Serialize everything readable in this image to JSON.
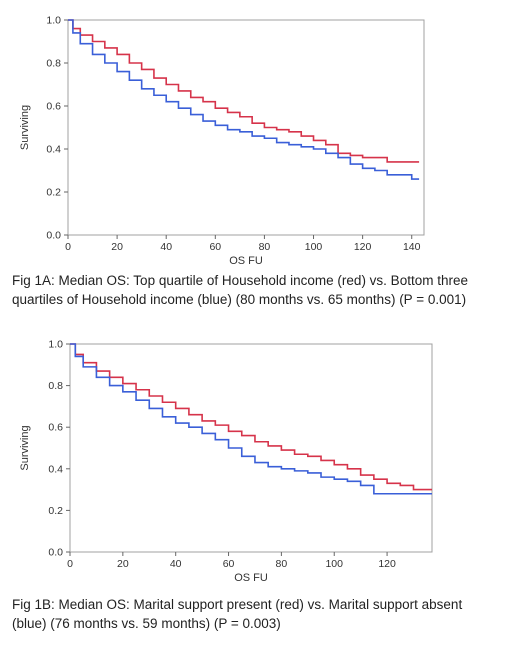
{
  "chart_data": [
    {
      "type": "line",
      "xlabel": "OS FU",
      "ylabel": "Surviving",
      "xlim": [
        0,
        145
      ],
      "ylim": [
        0,
        1.0
      ],
      "xticks": [
        "0",
        "20",
        "40",
        "60",
        "80",
        "100",
        "120",
        "140"
      ],
      "yticks": [
        "0.0",
        "0.2",
        "0.4",
        "0.6",
        "0.8",
        "1.0"
      ],
      "grid": false,
      "series": [
        {
          "color": "#d6334a",
          "x": [
            0,
            2,
            5,
            10,
            15,
            20,
            25,
            30,
            35,
            40,
            45,
            50,
            55,
            60,
            65,
            70,
            75,
            80,
            85,
            90,
            95,
            100,
            105,
            110,
            115,
            120,
            125,
            130,
            135,
            140,
            143
          ],
          "y": [
            1.0,
            0.96,
            0.93,
            0.9,
            0.87,
            0.84,
            0.8,
            0.77,
            0.73,
            0.7,
            0.67,
            0.64,
            0.62,
            0.59,
            0.57,
            0.55,
            0.52,
            0.5,
            0.49,
            0.48,
            0.46,
            0.44,
            0.42,
            0.38,
            0.37,
            0.36,
            0.36,
            0.34,
            0.34,
            0.34,
            0.34
          ]
        },
        {
          "color": "#3a5fd8",
          "x": [
            0,
            2,
            5,
            10,
            15,
            20,
            25,
            30,
            35,
            40,
            45,
            50,
            55,
            60,
            65,
            70,
            75,
            80,
            85,
            90,
            95,
            100,
            105,
            110,
            115,
            120,
            125,
            130,
            135,
            140,
            143
          ],
          "y": [
            1.0,
            0.94,
            0.89,
            0.84,
            0.8,
            0.76,
            0.72,
            0.68,
            0.65,
            0.62,
            0.59,
            0.56,
            0.53,
            0.51,
            0.49,
            0.48,
            0.46,
            0.45,
            0.43,
            0.42,
            0.41,
            0.4,
            0.38,
            0.36,
            0.33,
            0.31,
            0.3,
            0.28,
            0.28,
            0.26,
            0.26
          ]
        }
      ]
    },
    {
      "type": "line",
      "xlabel": "OS FU",
      "ylabel": "Surviving",
      "xlim": [
        0,
        137
      ],
      "ylim": [
        0,
        1.0
      ],
      "xticks": [
        "0",
        "20",
        "40",
        "60",
        "80",
        "100",
        "120"
      ],
      "yticks": [
        "0.0",
        "0.2",
        "0.4",
        "0.6",
        "0.8",
        "1.0"
      ],
      "grid": false,
      "series": [
        {
          "color": "#d6334a",
          "x": [
            0,
            2,
            5,
            10,
            15,
            20,
            25,
            30,
            35,
            40,
            45,
            50,
            55,
            60,
            65,
            70,
            75,
            80,
            85,
            90,
            95,
            100,
            105,
            110,
            115,
            120,
            125,
            130,
            135,
            137
          ],
          "y": [
            1.0,
            0.95,
            0.91,
            0.87,
            0.84,
            0.81,
            0.78,
            0.75,
            0.72,
            0.69,
            0.66,
            0.63,
            0.61,
            0.58,
            0.56,
            0.53,
            0.51,
            0.49,
            0.47,
            0.46,
            0.44,
            0.42,
            0.4,
            0.37,
            0.35,
            0.33,
            0.32,
            0.3,
            0.3,
            0.3
          ]
        },
        {
          "color": "#3a5fd8",
          "x": [
            0,
            2,
            5,
            10,
            15,
            20,
            25,
            30,
            35,
            40,
            45,
            50,
            55,
            60,
            65,
            70,
            75,
            80,
            85,
            90,
            95,
            100,
            105,
            110,
            115,
            120,
            125,
            130,
            135,
            137
          ],
          "y": [
            1.0,
            0.94,
            0.89,
            0.84,
            0.8,
            0.77,
            0.73,
            0.69,
            0.65,
            0.62,
            0.6,
            0.57,
            0.54,
            0.5,
            0.46,
            0.43,
            0.41,
            0.4,
            0.39,
            0.38,
            0.36,
            0.35,
            0.34,
            0.32,
            0.28,
            0.28,
            0.28,
            0.28,
            0.28,
            0.28
          ]
        }
      ]
    }
  ],
  "captions": [
    {
      "line1": "Fig 1A: Median OS:  Top quartile of Household income (red) vs. Bottom three",
      "line2": "quartiles of Household income (blue) (80 months vs. 65 months) (P = 0.001)"
    },
    {
      "line1": "Fig 1B: Median OS:  Marital support present (red) vs. Marital support absent",
      "line2": "(blue) (76 months vs. 59 months) (P = 0.003)"
    }
  ]
}
